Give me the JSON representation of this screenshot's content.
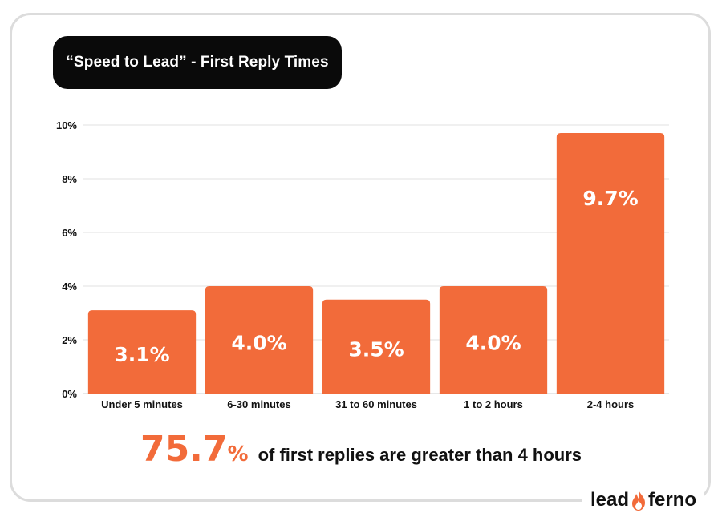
{
  "title": "“Speed to Lead” - First Reply Times",
  "colors": {
    "bar": "#f26b3a",
    "accent": "#f26b3a",
    "grid": "#e2e2e2",
    "title_bg": "#0a0a0a"
  },
  "chart_data": {
    "type": "bar",
    "title": "“Speed to Lead” - First Reply Times",
    "categories": [
      "Under 5 minutes",
      "6-30 minutes",
      "31 to 60 minutes",
      "1 to 2 hours",
      "2-4 hours"
    ],
    "values": [
      3.1,
      4.0,
      3.5,
      4.0,
      9.7
    ],
    "data_labels": [
      "3.1%",
      "4.0%",
      "3.5%",
      "4.0%",
      "9.7%"
    ],
    "yticks": [
      0,
      2,
      4,
      6,
      8,
      10
    ],
    "ytick_labels": [
      "0%",
      "2%",
      "4%",
      "6%",
      "8%",
      "10%"
    ],
    "ylim": [
      0,
      10
    ],
    "xlabel": "",
    "ylabel": "",
    "grid": true,
    "legend": "none"
  },
  "callout": {
    "number": "75.7",
    "unit": "%",
    "text": "of first replies are greater than 4 hours"
  },
  "logo": {
    "left": "lead",
    "icon": "flame-icon",
    "right": "ferno"
  }
}
